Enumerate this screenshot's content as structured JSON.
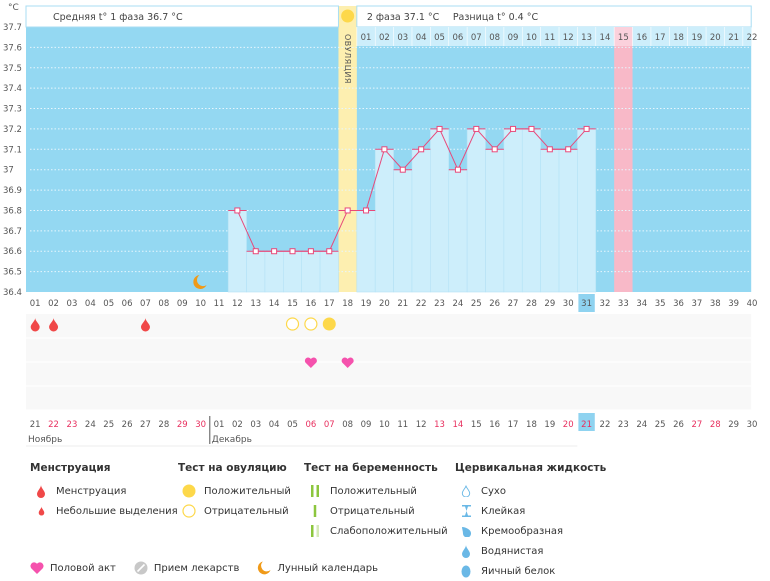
{
  "header": {
    "phase1_label": "Средняя t° 1 фаза 36.7 °C",
    "phase2_label": "2 фаза 37.1 °C",
    "diff_label": "Разница t° 0.4 °C",
    "unit_label": "°C",
    "ovulation_label": "ОВУЛЯЦИЯ"
  },
  "chart_data": {
    "type": "line",
    "title": "",
    "ylabel": "°C",
    "ylim": [
      36.4,
      37.7
    ],
    "yticks": [
      "37.7",
      "37.6",
      "37.5",
      "37.4",
      "37.3",
      "37.2",
      "37.1",
      "37",
      "36.9",
      "36.8",
      "36.7",
      "36.6",
      "36.5",
      "36.4"
    ],
    "cycle_days": [
      "01",
      "02",
      "03",
      "04",
      "05",
      "06",
      "07",
      "08",
      "09",
      "10",
      "11",
      "12",
      "13",
      "14",
      "15",
      "16",
      "17",
      "18",
      "19",
      "20",
      "21",
      "22",
      "23",
      "24",
      "25",
      "26",
      "27",
      "28",
      "29",
      "30",
      "31",
      "32",
      "33",
      "34",
      "35",
      "36",
      "37",
      "38",
      "39",
      "40"
    ],
    "series": [
      {
        "name": "Базальная температура",
        "x": [
          12,
          13,
          14,
          15,
          16,
          17,
          18,
          19,
          20,
          21,
          22,
          23,
          24,
          25,
          26,
          27,
          28,
          29,
          30,
          31
        ],
        "values": [
          36.8,
          36.6,
          36.6,
          36.6,
          36.6,
          36.6,
          36.8,
          36.8,
          37.1,
          37.0,
          37.1,
          37.2,
          37.0,
          37.2,
          37.1,
          37.2,
          37.2,
          37.1,
          37.1,
          37.2
        ]
      }
    ],
    "ovulation_day": 18,
    "current_day": 31,
    "expected_period_day": 33,
    "luteal_day_labels": [
      "01",
      "02",
      "03",
      "04",
      "05",
      "06",
      "07",
      "08",
      "09",
      "10",
      "11",
      "12",
      "13",
      "14",
      "15",
      "16",
      "17",
      "18",
      "19",
      "20",
      "21",
      "22"
    ],
    "luteal_highlight": "15",
    "moon_day": 10,
    "menstruation_days": [
      1,
      2,
      7
    ],
    "ovulation_test_negative_days": [
      15,
      16
    ],
    "ovulation_test_positive_days": [
      17
    ],
    "intercourse_days": [
      16,
      18
    ],
    "dates": [
      "21",
      "22",
      "23",
      "24",
      "25",
      "26",
      "27",
      "28",
      "29",
      "30",
      "01",
      "02",
      "03",
      "04",
      "05",
      "06",
      "07",
      "08",
      "09",
      "10",
      "11",
      "12",
      "13",
      "14",
      "15",
      "16",
      "17",
      "18",
      "19",
      "20",
      "21",
      "22",
      "23",
      "24",
      "25",
      "26",
      "27",
      "28",
      "29",
      "30"
    ],
    "weekend_date_indexes": [
      1,
      2,
      8,
      9,
      15,
      16,
      22,
      23,
      29,
      30,
      36,
      37
    ],
    "today_date_index": 30,
    "months": [
      {
        "label": "Ноябрь",
        "start_index": 0
      },
      {
        "label": "Декабрь",
        "start_index": 10
      }
    ]
  },
  "legend": {
    "menstruation": {
      "title": "Менструация",
      "items": [
        "Менструация",
        "Небольшие выделения"
      ]
    },
    "ovulation_test": {
      "title": "Тест на овуляцию",
      "items": [
        "Положительный",
        "Отрицательный"
      ]
    },
    "pregnancy_test": {
      "title": "Тест на беременность",
      "items": [
        "Положительный",
        "Отрицательный",
        "Слабоположительный"
      ]
    },
    "cervical_fluid": {
      "title": "Цервикальная жидкость",
      "items": [
        "Сухо",
        "Клейкая",
        "Кремообразная",
        "Водянистая",
        "Яичный белок"
      ]
    },
    "other": {
      "items": [
        "Половой акт",
        "Прием лекарств",
        "Лунный календарь"
      ]
    }
  },
  "colors": {
    "bg_blue": "#94d8f2",
    "bar_blue": "#cdeefb",
    "ovulation_yellow": "#fdefb0",
    "period_pink": "#f8b9c8",
    "line_pink": "#e8497a",
    "weekend_red": "#e8305f",
    "today_blue": "#8fd3f0",
    "blood_red": "#f04848",
    "sun_yellow": "#fdd84a",
    "heart_pink": "#f552ad",
    "moon_orange": "#f09a18",
    "green": "#8cc63e",
    "fluid_blue": "#6ab8e6"
  }
}
